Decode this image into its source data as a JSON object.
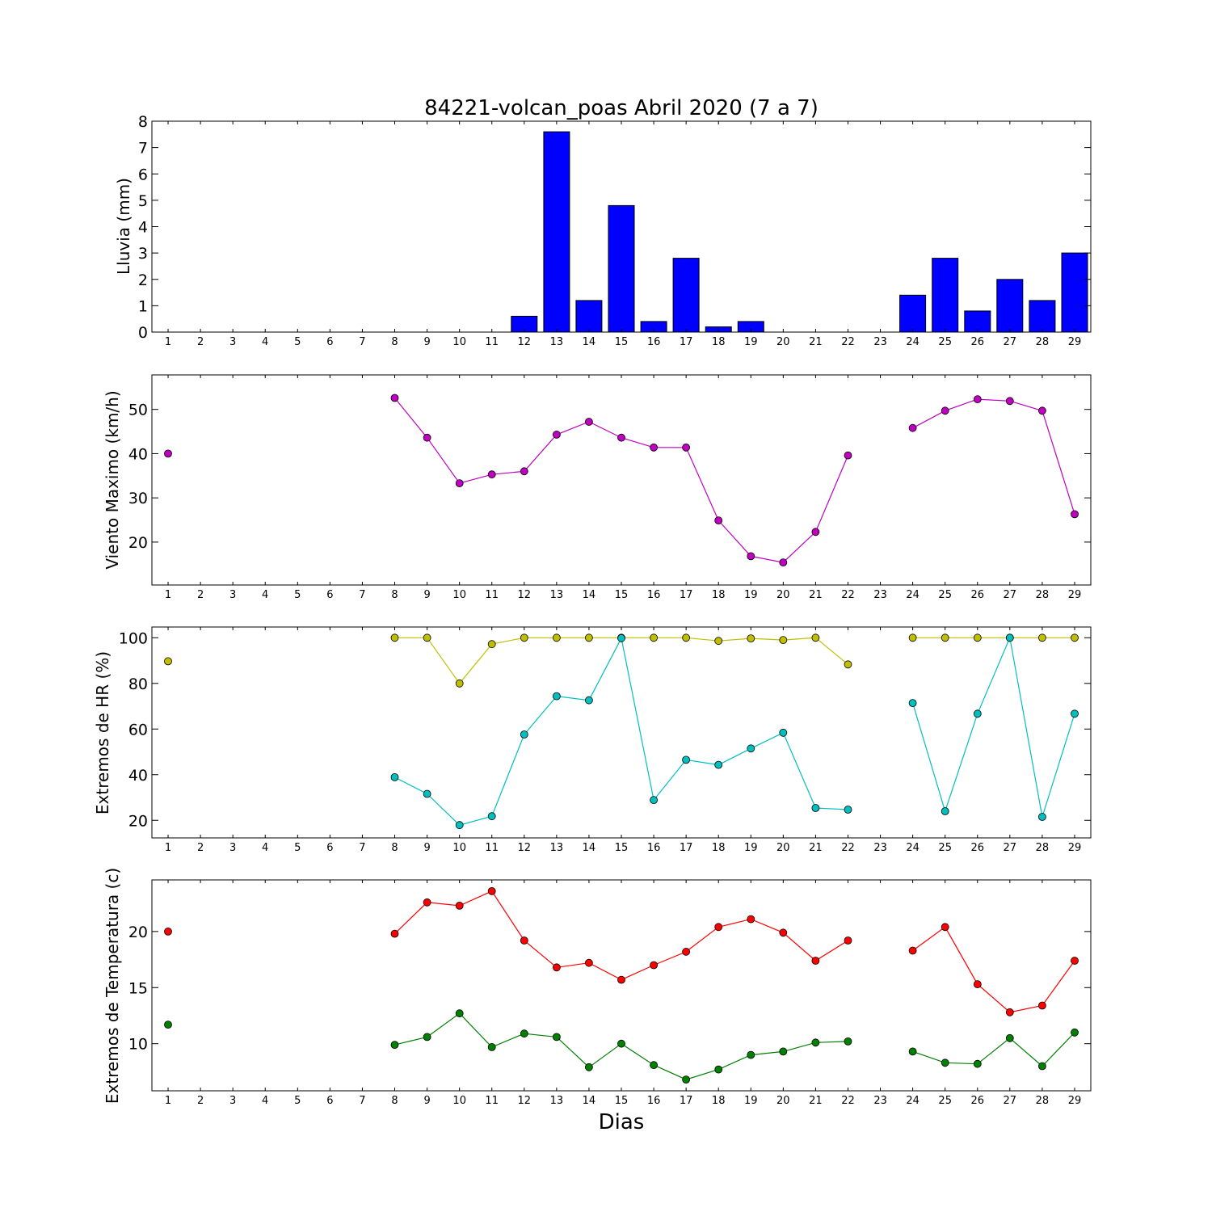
{
  "chart_data": [
    {
      "type": "bar",
      "title": "84221-volcan_poas Abril 2020  (7 a 7)",
      "xlabel": "",
      "ylabel": "Lluvia (mm)",
      "ylim": [
        0,
        8
      ],
      "yticks": [
        0,
        1,
        2,
        3,
        4,
        5,
        6,
        7,
        8
      ],
      "categories": [
        "1",
        "2",
        "3",
        "4",
        "5",
        "6",
        "7",
        "8",
        "9",
        "10",
        "11",
        "12",
        "13",
        "14",
        "15",
        "16",
        "17",
        "18",
        "19",
        "20",
        "21",
        "22",
        "23",
        "24",
        "25",
        "26",
        "27",
        "28",
        "29"
      ],
      "series": [
        {
          "color": "#0000ff",
          "values": [
            0,
            0,
            0,
            0,
            0,
            0,
            0,
            0,
            0,
            0,
            0,
            0.6,
            7.6,
            1.2,
            4.8,
            0.4,
            2.8,
            0.2,
            0.4,
            0,
            0,
            0,
            0,
            1.4,
            2.8,
            0.8,
            2.0,
            1.2,
            3.0
          ]
        }
      ]
    },
    {
      "type": "line",
      "title": "",
      "xlabel": "",
      "ylabel": "Viento Maximo (km/h)",
      "ylim": [
        10.3,
        57.8
      ],
      "yticks": [
        20,
        30,
        40,
        50
      ],
      "categories": [
        "1",
        "2",
        "3",
        "4",
        "5",
        "6",
        "7",
        "8",
        "9",
        "10",
        "11",
        "12",
        "13",
        "14",
        "15",
        "16",
        "17",
        "18",
        "19",
        "20",
        "21",
        "22",
        "23",
        "24",
        "25",
        "26",
        "27",
        "28",
        "29"
      ],
      "series": [
        {
          "color": "#bf00bf",
          "values": [
            40.0,
            null,
            null,
            null,
            null,
            null,
            null,
            52.6,
            43.6,
            33.3,
            35.3,
            36.0,
            44.3,
            47.2,
            43.6,
            41.4,
            41.4,
            24.9,
            16.8,
            15.4,
            22.3,
            39.6,
            null,
            45.8,
            49.7,
            52.3,
            51.9,
            49.7,
            26.3
          ]
        }
      ]
    },
    {
      "type": "line",
      "title": "",
      "xlabel": "",
      "ylabel": "Extremos de HR (%)",
      "ylim": [
        12.3,
        104.7
      ],
      "yticks": [
        20,
        40,
        60,
        80,
        100
      ],
      "categories": [
        "1",
        "2",
        "3",
        "4",
        "5",
        "6",
        "7",
        "8",
        "9",
        "10",
        "11",
        "12",
        "13",
        "14",
        "15",
        "16",
        "17",
        "18",
        "19",
        "20",
        "21",
        "22",
        "23",
        "24",
        "25",
        "26",
        "27",
        "28",
        "29"
      ],
      "series": [
        {
          "color": "#bfbf00",
          "values": [
            89.7,
            null,
            null,
            null,
            null,
            null,
            null,
            100,
            100,
            80.0,
            97.2,
            100,
            100,
            100,
            100,
            100,
            100,
            98.6,
            99.7,
            99.0,
            100,
            88.3,
            null,
            100,
            100,
            100,
            100,
            100,
            100
          ]
        },
        {
          "color": "#00bfbf",
          "values": [
            null,
            null,
            null,
            null,
            null,
            null,
            null,
            38.9,
            31.6,
            17.9,
            21.8,
            57.6,
            74.4,
            72.6,
            99.8,
            28.9,
            46.5,
            44.3,
            51.5,
            58.4,
            25.4,
            24.7,
            null,
            71.4,
            24.0,
            66.7,
            100,
            21.5,
            66.7
          ]
        }
      ]
    },
    {
      "type": "line",
      "title": "",
      "xlabel": "Dias",
      "ylabel": "Extremos de Temperatura (c)",
      "ylim": [
        5.8,
        24.6
      ],
      "yticks": [
        10,
        15,
        20
      ],
      "categories": [
        "1",
        "2",
        "3",
        "4",
        "5",
        "6",
        "7",
        "8",
        "9",
        "10",
        "11",
        "12",
        "13",
        "14",
        "15",
        "16",
        "17",
        "18",
        "19",
        "20",
        "21",
        "22",
        "23",
        "24",
        "25",
        "26",
        "27",
        "28",
        "29"
      ],
      "series": [
        {
          "color": "#ff0000",
          "values": [
            20.0,
            null,
            null,
            null,
            null,
            null,
            null,
            19.8,
            22.6,
            22.3,
            23.6,
            19.2,
            16.8,
            17.2,
            15.7,
            17.0,
            18.2,
            20.4,
            21.1,
            19.9,
            17.4,
            19.2,
            null,
            18.3,
            20.4,
            15.3,
            12.8,
            13.4,
            17.4
          ]
        },
        {
          "color": "#008000",
          "values": [
            11.7,
            null,
            null,
            null,
            null,
            null,
            null,
            9.9,
            10.6,
            12.7,
            9.7,
            10.9,
            10.6,
            7.9,
            10.0,
            8.1,
            6.8,
            7.7,
            9.0,
            9.3,
            10.1,
            10.2,
            null,
            9.3,
            8.3,
            8.2,
            10.5,
            8.0,
            11.0
          ]
        }
      ]
    }
  ]
}
